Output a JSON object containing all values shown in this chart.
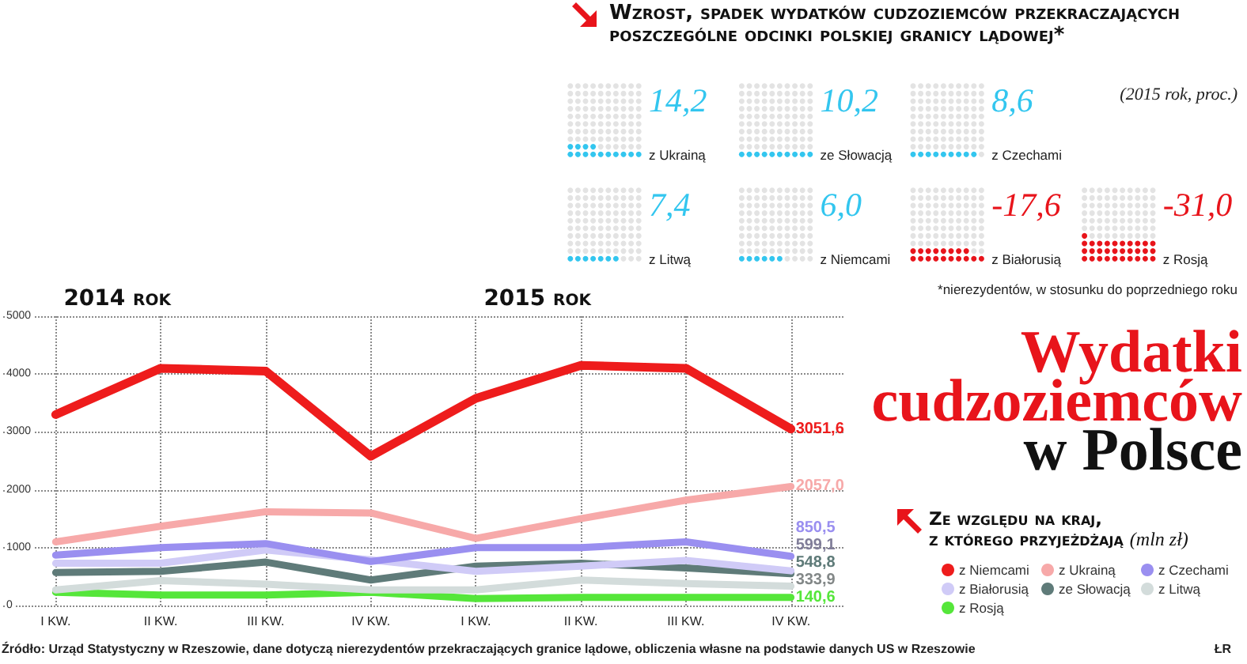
{
  "chart_data": [
    {
      "type": "other",
      "title": "Wzrost, spadek wydatków cudzoziemców przekraczających poszczególne odcinki polskiej granicy lądowej*",
      "categories": [
        "z Ukrainą",
        "ze Słowacją",
        "z Czechami",
        "z Litwą",
        "z Niemcami",
        "z Białorusią",
        "z Rosją"
      ],
      "values": [
        14.2,
        10.2,
        8.6,
        7.4,
        6.0,
        -17.6,
        -31.0
      ],
      "value_labels": [
        "14,2",
        "10,2",
        "8,6",
        "7,4",
        "6,0",
        "-17,6",
        "-31,0"
      ],
      "colors": [
        "#33c6ef",
        "#33c6ef",
        "#33c6ef",
        "#33c6ef",
        "#33c6ef",
        "#e8141b",
        "#e8141b"
      ],
      "annotations": [
        "(2015 rok, proc.)",
        "*nierezydentów, w stosunku do poprzedniego roku"
      ]
    },
    {
      "type": "line",
      "title": "Wydatki cudzoziemców w Polsce",
      "legend_title": "Ze względu na kraj, z którego przyjeżdżają (mln zł)",
      "categories": [
        "I KW.",
        "II KW.",
        "III KW.",
        "IV KW.",
        "I KW.",
        "II KW.",
        "III KW.",
        "IV KW."
      ],
      "ylim": [
        0,
        5000
      ],
      "yticks": [
        0,
        1000,
        2000,
        3000,
        4000,
        5000
      ],
      "grid": true,
      "legend": "bottom right",
      "marker": "none",
      "series": [
        {
          "name": "z Niemcami",
          "color": "#ee1c1c",
          "values": [
            3300,
            4100,
            4050,
            2580,
            3580,
            4150,
            4100,
            3051.6
          ],
          "value_labels": [
            null,
            null,
            null,
            null,
            null,
            null,
            null,
            "3051,6"
          ]
        },
        {
          "name": "z Ukrainą",
          "color": "#f7a9a9",
          "values": [
            1100,
            1370,
            1620,
            1600,
            1160,
            1500,
            1820,
            2057.0
          ],
          "value_labels": [
            null,
            null,
            null,
            null,
            null,
            null,
            null,
            "2057,0"
          ]
        },
        {
          "name": "z Czechami",
          "color": "#9a8ff0",
          "values": [
            870,
            1000,
            1070,
            760,
            1000,
            1000,
            1100,
            850.5
          ],
          "value_labels": [
            null,
            null,
            null,
            null,
            null,
            null,
            null,
            "850,5"
          ]
        },
        {
          "name": "z Białorusią",
          "color": "#d0cbf7",
          "values": [
            730,
            730,
            960,
            790,
            590,
            680,
            780,
            599.1
          ],
          "value_labels": [
            null,
            null,
            null,
            null,
            null,
            null,
            null,
            "599,1"
          ]
        },
        {
          "name": "ze Słowacją",
          "color": "#5f7b79",
          "values": [
            570,
            590,
            750,
            440,
            680,
            730,
            650,
            548.8
          ],
          "value_labels": [
            null,
            null,
            null,
            null,
            null,
            null,
            null,
            "548,8"
          ]
        },
        {
          "name": "z Litwą",
          "color": "#d3dcdb",
          "values": [
            270,
            430,
            370,
            270,
            270,
            440,
            380,
            333.9
          ],
          "value_labels": [
            null,
            null,
            null,
            null,
            null,
            null,
            null,
            "333,9"
          ]
        },
        {
          "name": "z Rosją",
          "color": "#55e63a",
          "values": [
            230,
            180,
            180,
            230,
            120,
            140,
            140,
            140.6
          ],
          "value_labels": [
            null,
            null,
            null,
            null,
            null,
            null,
            null,
            "140,6"
          ]
        }
      ],
      "annotations": [
        "2014 rok",
        "2015 rok",
        "Źródło: Urząd Statystyczny w Rzeszowie, dane dotyczą nierezydentów przekraczających granice lądowe, obliczenia własne na podstawie danych US w Rzeszowie",
        "ŁR"
      ]
    }
  ]
}
